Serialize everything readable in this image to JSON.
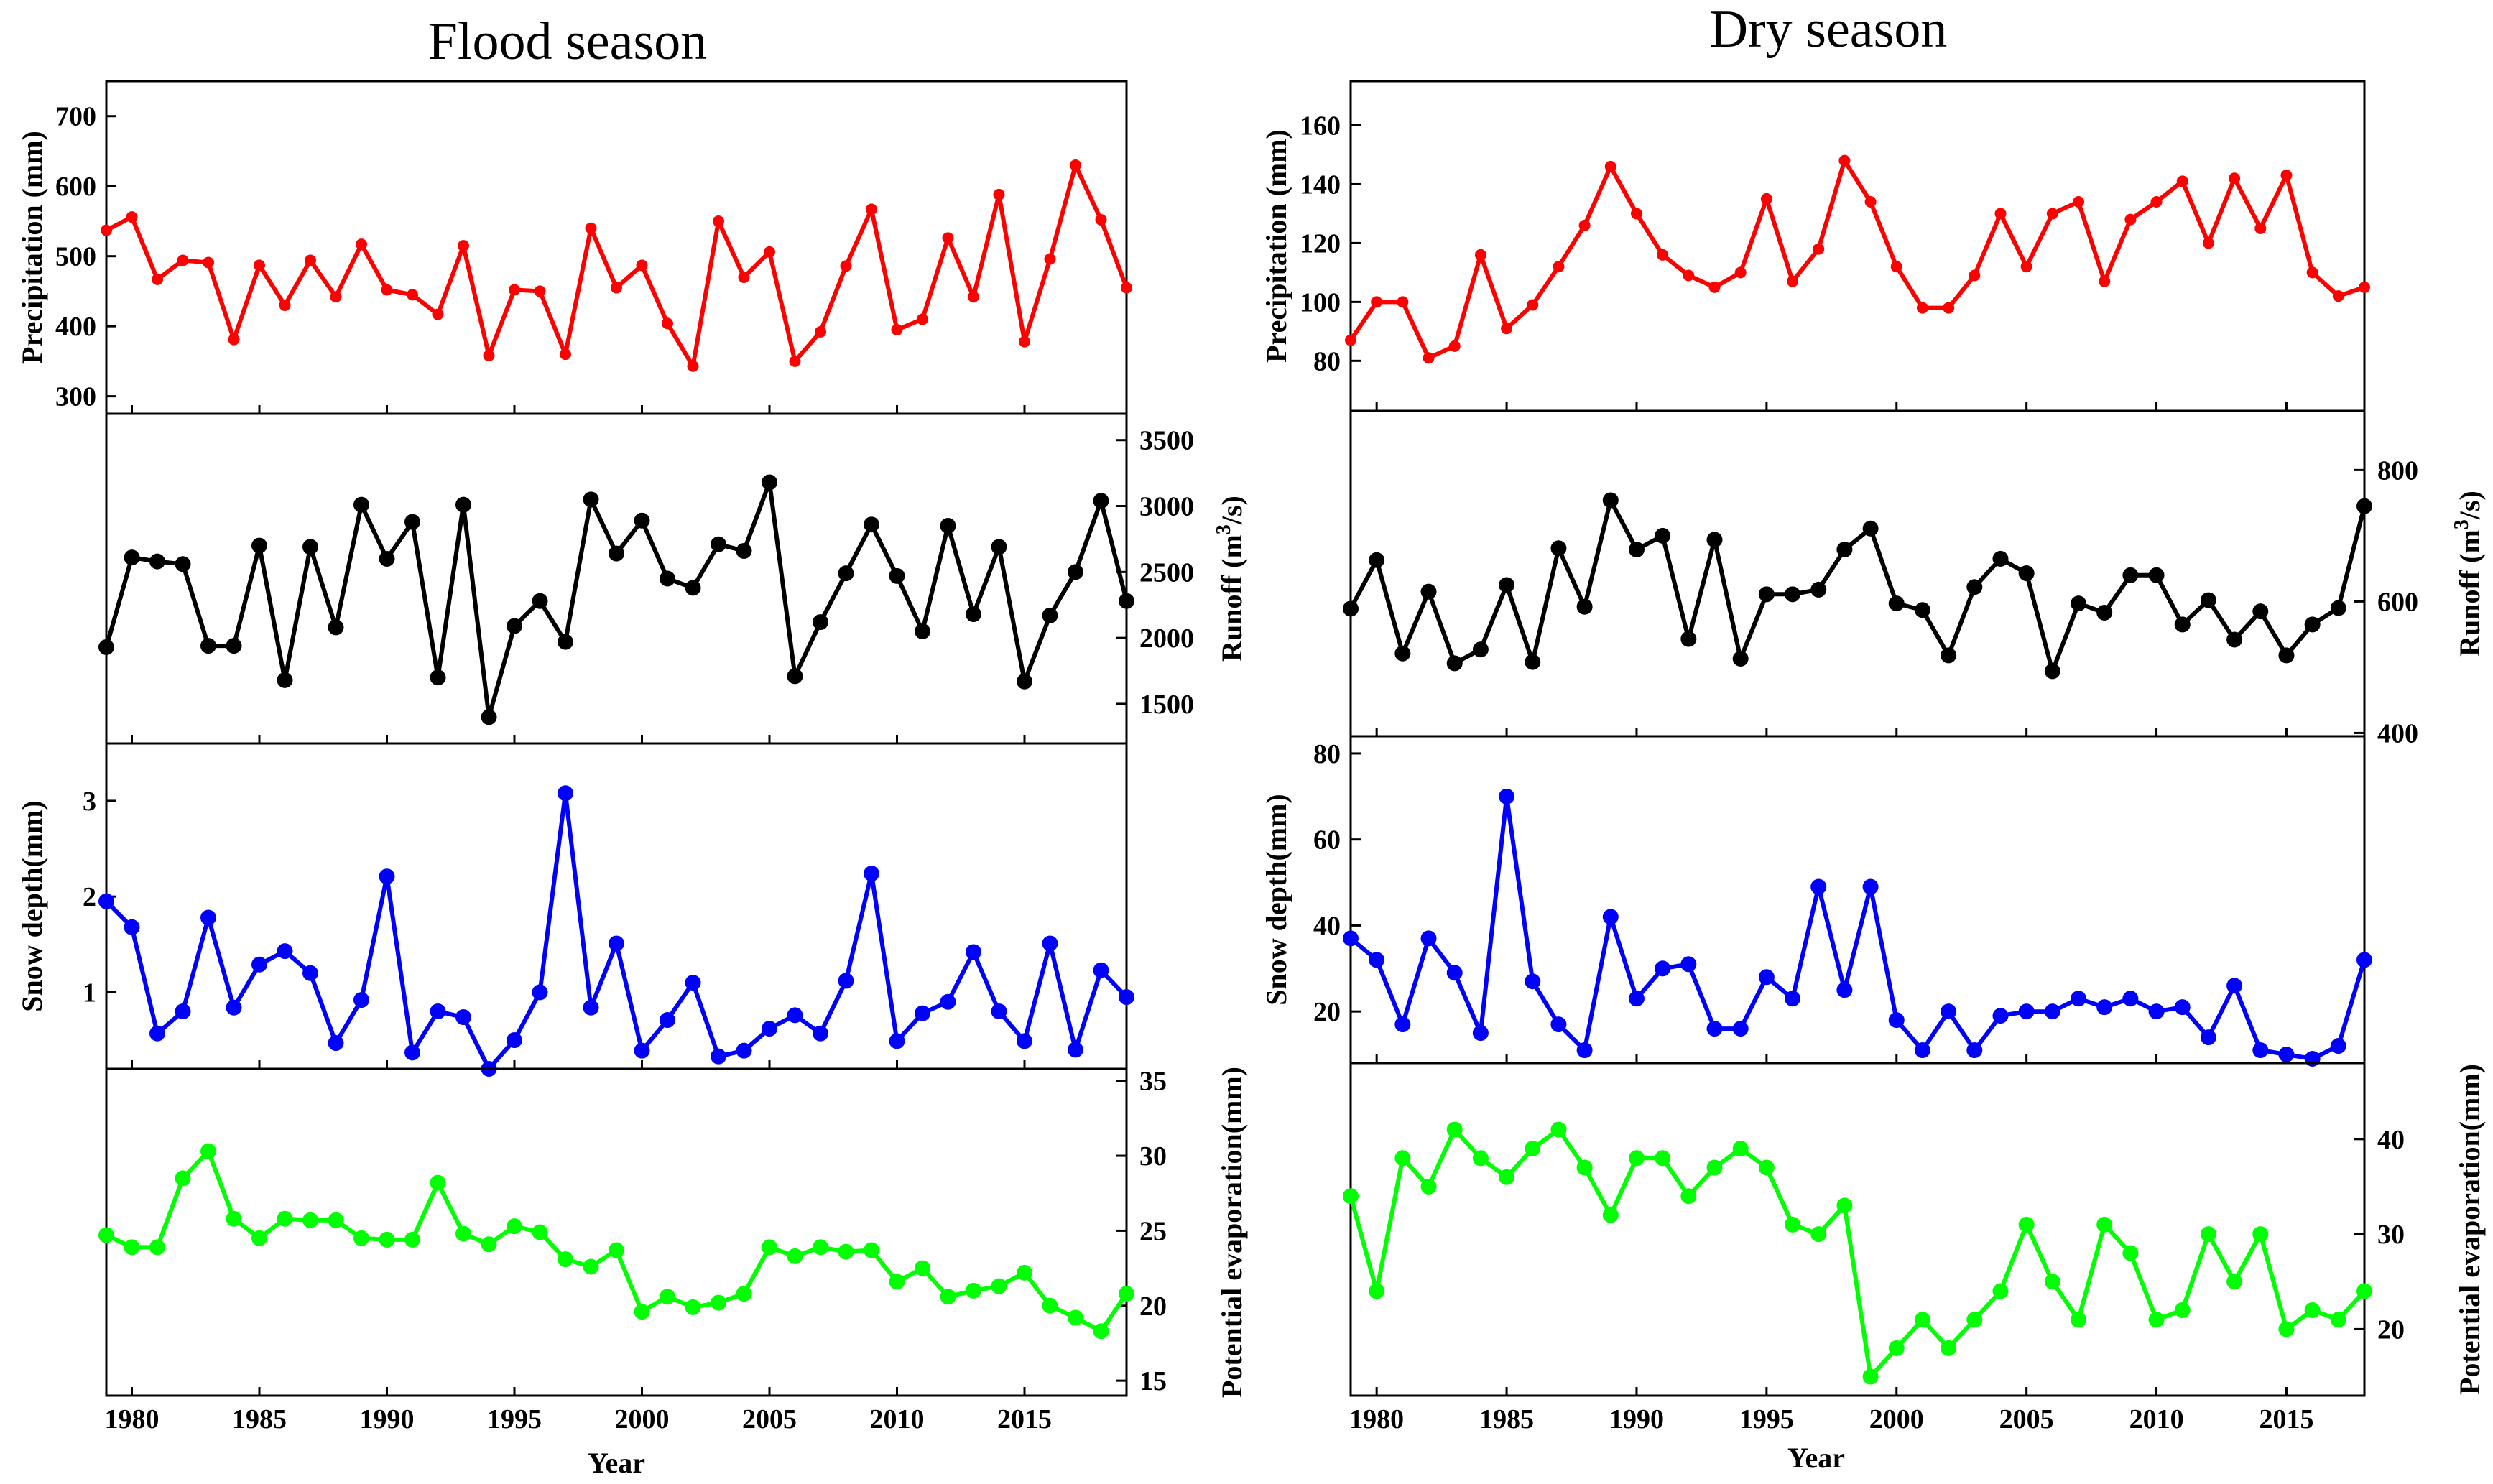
{
  "colors": {
    "precipitation": "#ff0000",
    "runoff": "#000000",
    "snow": "#0000ff",
    "evaporation": "#00ff00"
  },
  "chart_data": [
    {
      "id": "flood",
      "title": "Flood season",
      "xlabel": "Year",
      "type": "line",
      "x": [
        1979,
        1980,
        1981,
        1982,
        1983,
        1984,
        1985,
        1986,
        1987,
        1988,
        1989,
        1990,
        1991,
        1992,
        1993,
        1994,
        1995,
        1996,
        1997,
        1998,
        1999,
        2000,
        2001,
        2002,
        2003,
        2004,
        2005,
        2006,
        2007,
        2008,
        2009,
        2010,
        2011,
        2012,
        2013,
        2014,
        2015,
        2016,
        2017,
        2018,
        2019
      ],
      "xlim": [
        1979,
        2019
      ],
      "xticks": [
        1980,
        1985,
        1990,
        1995,
        2000,
        2005,
        2010,
        2015
      ],
      "panels": [
        {
          "name": "Precipitation",
          "ylabel": "Precipitation (mm)",
          "axis": "left",
          "ylim": [
            275,
            750
          ],
          "yticks": [
            300,
            400,
            500,
            600,
            700
          ],
          "color": "#ff0000",
          "marker_size": 8,
          "values": [
            537,
            556,
            467,
            494,
            491,
            381,
            487,
            430,
            494,
            442,
            517,
            452,
            445,
            417,
            515,
            358,
            452,
            450,
            360,
            540,
            455,
            487,
            404,
            343,
            550,
            470,
            506,
            350,
            392,
            486,
            567,
            395,
            410,
            526,
            442,
            588,
            378,
            496,
            630,
            552,
            455
          ]
        },
        {
          "name": "Runoff",
          "ylabel": "Runoff (m³/s)",
          "ylabel_base": "Runoff (m",
          "ylabel_exp": "3",
          "ylabel_tail": "/s)",
          "axis": "right",
          "ylim": [
            1200,
            3700
          ],
          "yticks": [
            1500,
            2000,
            2500,
            3000,
            3500
          ],
          "color": "#000000",
          "marker_size": 11,
          "values": [
            1930,
            2610,
            2580,
            2560,
            1940,
            1940,
            2700,
            1680,
            2690,
            2080,
            3010,
            2600,
            2880,
            1700,
            3010,
            1400,
            2090,
            2280,
            1970,
            3050,
            2640,
            2890,
            2450,
            2380,
            2710,
            2660,
            3180,
            1710,
            2120,
            2490,
            2860,
            2470,
            2050,
            2850,
            2180,
            2690,
            1670,
            2170,
            2500,
            3040,
            2280
          ]
        },
        {
          "name": "Snow depth",
          "ylabel": "Snow depth(mm)",
          "axis": "left",
          "ylim": [
            0.2,
            3.6
          ],
          "yticks": [
            1,
            2,
            3
          ],
          "color": "#0000ff",
          "marker_size": 11,
          "values": [
            1.95,
            1.68,
            0.57,
            0.8,
            1.78,
            0.84,
            1.29,
            1.43,
            1.2,
            0.47,
            0.92,
            2.21,
            0.37,
            0.8,
            0.74,
            0.2,
            0.5,
            1.0,
            3.08,
            0.84,
            1.51,
            0.39,
            0.71,
            1.1,
            0.33,
            0.39,
            0.62,
            0.76,
            0.57,
            1.12,
            2.24,
            0.49,
            0.78,
            0.9,
            1.42,
            0.8,
            0.49,
            1.51,
            0.4,
            1.23,
            0.95
          ]
        },
        {
          "name": "Potential evaporation",
          "ylabel": "Potential evaporation(mm)",
          "axis": "right",
          "ylim": [
            14,
            35.8
          ],
          "yticks": [
            15,
            20,
            25,
            30,
            35
          ],
          "color": "#00ff00",
          "marker_size": 11,
          "values": [
            24.7,
            23.9,
            23.9,
            28.5,
            30.3,
            25.8,
            24.5,
            25.8,
            25.7,
            25.7,
            24.5,
            24.4,
            24.4,
            28.2,
            24.8,
            24.1,
            25.3,
            24.9,
            23.1,
            22.6,
            23.7,
            19.6,
            20.6,
            19.9,
            20.2,
            20.8,
            23.9,
            23.3,
            23.9,
            23.6,
            23.7,
            21.6,
            22.5,
            20.6,
            21.0,
            21.3,
            22.2,
            20.0,
            19.2,
            18.3,
            20.8
          ]
        }
      ]
    },
    {
      "id": "dry",
      "title": "Dry season",
      "xlabel": "Year",
      "type": "line",
      "x": [
        1979,
        1980,
        1981,
        1982,
        1983,
        1984,
        1985,
        1986,
        1987,
        1988,
        1989,
        1990,
        1991,
        1992,
        1993,
        1994,
        1995,
        1996,
        1997,
        1998,
        1999,
        2000,
        2001,
        2002,
        2003,
        2004,
        2005,
        2006,
        2007,
        2008,
        2009,
        2010,
        2011,
        2012,
        2013,
        2014,
        2015,
        2016,
        2017,
        2018
      ],
      "xlim": [
        1979,
        2018
      ],
      "xticks": [
        1980,
        1985,
        1990,
        1995,
        2000,
        2005,
        2010,
        2015
      ],
      "panels": [
        {
          "name": "Precipitation",
          "ylabel": "Precipitation (mm)",
          "axis": "left",
          "ylim": [
            63,
            175
          ],
          "yticks": [
            80,
            100,
            120,
            140,
            160
          ],
          "color": "#ff0000",
          "marker_size": 8,
          "values": [
            87,
            100,
            100,
            81,
            85,
            116,
            91,
            99,
            112,
            126,
            146,
            130,
            116,
            109,
            105,
            110,
            135,
            107,
            118,
            148,
            134,
            112,
            98,
            98,
            109,
            130,
            112,
            130,
            134,
            107,
            128,
            134,
            141,
            120,
            142,
            125,
            143,
            110,
            102,
            105
          ]
        },
        {
          "name": "Runoff",
          "ylabel": "Runoff (m³/s)",
          "ylabel_base": "Runoff (m",
          "ylabel_exp": "3",
          "ylabel_tail": "/s)",
          "axis": "right",
          "ylim": [
            395,
            890
          ],
          "yticks": [
            400,
            600,
            800
          ],
          "color": "#000000",
          "marker_size": 11,
          "values": [
            589,
            663,
            521,
            615,
            506,
            527,
            625,
            508,
            681,
            592,
            754,
            679,
            700,
            543,
            694,
            513,
            611,
            611,
            618,
            679,
            711,
            597,
            587,
            518,
            622,
            665,
            643,
            494,
            597,
            583,
            640,
            640,
            565,
            602,
            542,
            585,
            518,
            565,
            590,
            745
          ]
        },
        {
          "name": "Snow depth",
          "ylabel": "Snow depth(mm)",
          "axis": "left",
          "ylim": [
            8,
            84
          ],
          "yticks": [
            20,
            40,
            60,
            80
          ],
          "color": "#0000ff",
          "marker_size": 11,
          "values": [
            37,
            32,
            17,
            37,
            29,
            15,
            70,
            27,
            17,
            11,
            42,
            23,
            30,
            31,
            16,
            16,
            28,
            23,
            49,
            25,
            49,
            18,
            11,
            20,
            11,
            19,
            20,
            20,
            23,
            21,
            23,
            20,
            21,
            14,
            26,
            11,
            10,
            9,
            12,
            32
          ]
        },
        {
          "name": "Potential evaporation",
          "ylabel": "Potential evaporation(mm)",
          "axis": "right",
          "ylim": [
            13,
            48
          ],
          "yticks": [
            20,
            30,
            40
          ],
          "color": "#00ff00",
          "marker_size": 11,
          "values": [
            34,
            24,
            38,
            35,
            41,
            38,
            36,
            39,
            41,
            37,
            32,
            38,
            38,
            34,
            37,
            39,
            37,
            31,
            30,
            33,
            15,
            18,
            21,
            18,
            21,
            24,
            31,
            25,
            21,
            31,
            28,
            21,
            22,
            30,
            25,
            30,
            20,
            22,
            21,
            24
          ]
        }
      ]
    }
  ]
}
